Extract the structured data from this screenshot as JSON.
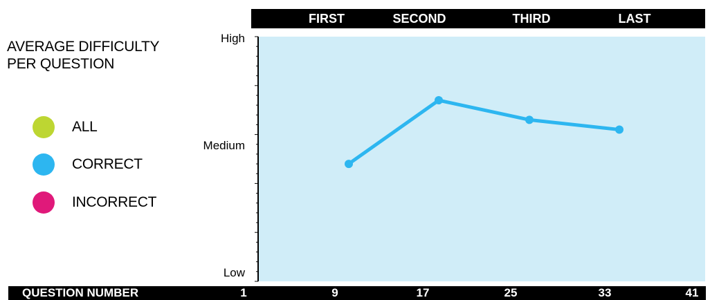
{
  "legend": {
    "title": "AVERAGE DIFFICULTY PER QUESTION",
    "items": [
      {
        "label": "ALL",
        "color": "#bdd632"
      },
      {
        "label": "CORRECT",
        "color": "#2db6f0"
      },
      {
        "label": "INCORRECT",
        "color": "#e0197a"
      }
    ]
  },
  "colors": {
    "plot_background": "#d0edf8",
    "line": "#2db6f0",
    "bars": "#000000"
  },
  "chart_data": {
    "type": "line",
    "xlabel": "QUESTION NUMBER",
    "x_ticks": [
      1,
      9,
      17,
      25,
      33,
      41
    ],
    "quarters": [
      "FIRST",
      "SECOND",
      "THIRD",
      "LAST"
    ],
    "y_labels": [
      "High",
      "Medium",
      "Low"
    ],
    "ylim": [
      0,
      1
    ],
    "series": [
      {
        "x": [
          9,
          17,
          25,
          33
        ],
        "y": [
          0.48,
          0.74,
          0.66,
          0.62
        ]
      }
    ]
  }
}
